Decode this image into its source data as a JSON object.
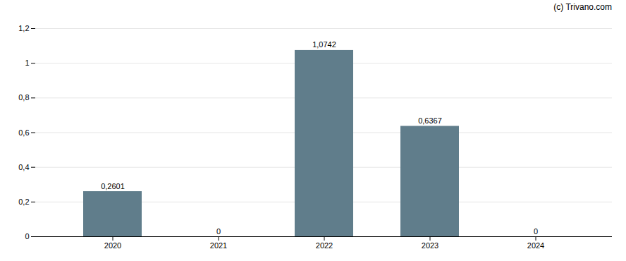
{
  "chart_data": {
    "type": "bar",
    "categories": [
      "2020",
      "2021",
      "2022",
      "2023",
      "2024"
    ],
    "values": [
      0.2601,
      0,
      1.0742,
      0.6367,
      0
    ],
    "value_labels": [
      "0,2601",
      "0",
      "1,0742",
      "0,6367",
      "0"
    ],
    "data_labels": true,
    "color": "#607d8b",
    "ylim": [
      0,
      1.2
    ],
    "yticks": [
      0,
      {
        "value": 0.2,
        "label": "0,2"
      },
      {
        "value": 0.4,
        "label": "0,4"
      },
      {
        "value": 0.6,
        "label": "0,6"
      },
      {
        "value": 0.8,
        "label": "0,8"
      },
      1,
      {
        "value": 1.2,
        "label": "1,2"
      }
    ],
    "grid": true,
    "annotations": [
      "(c) Trivano.com"
    ]
  }
}
